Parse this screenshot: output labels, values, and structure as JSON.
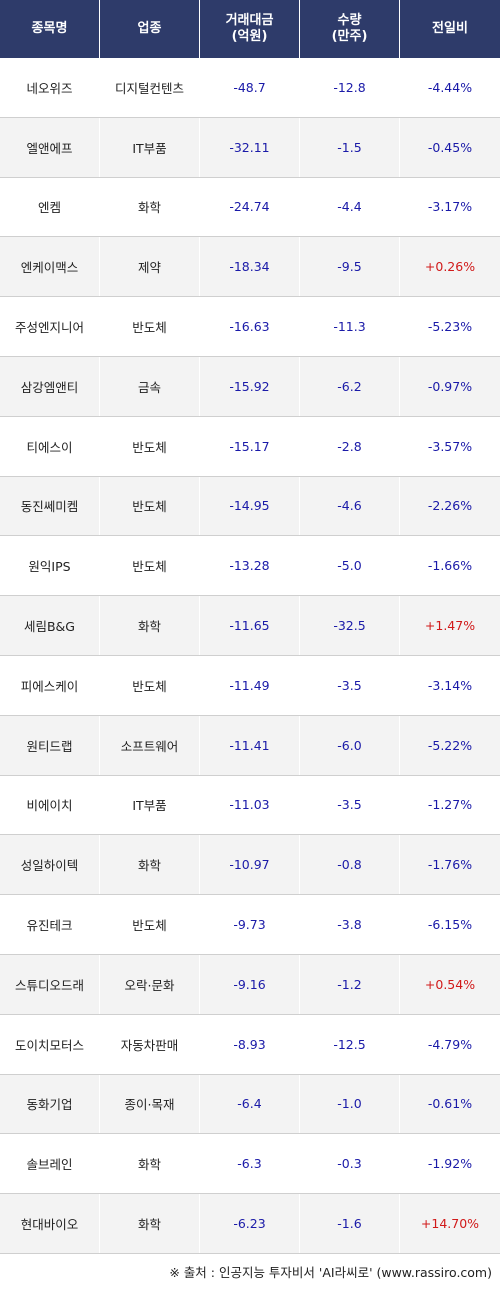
{
  "headers": [
    "종목명",
    "업종",
    "거래대금\n(억원)",
    "수량\n(만주)",
    "전일비"
  ],
  "rows": [
    {
      "name": "네오위즈",
      "sector": "디지털컨텐츠",
      "amount": "-48.7",
      "volume": "-12.8",
      "change": "-4.44%"
    },
    {
      "name": "엘앤에프",
      "sector": "IT부품",
      "amount": "-32.11",
      "volume": "-1.5",
      "change": "-0.45%"
    },
    {
      "name": "엔켐",
      "sector": "화학",
      "amount": "-24.74",
      "volume": "-4.4",
      "change": "-3.17%"
    },
    {
      "name": "엔케이맥스",
      "sector": "제약",
      "amount": "-18.34",
      "volume": "-9.5",
      "change": "+0.26%"
    },
    {
      "name": "주성엔지니어",
      "sector": "반도체",
      "amount": "-16.63",
      "volume": "-11.3",
      "change": "-5.23%"
    },
    {
      "name": "삼강엠앤티",
      "sector": "금속",
      "amount": "-15.92",
      "volume": "-6.2",
      "change": "-0.97%"
    },
    {
      "name": "티에스이",
      "sector": "반도체",
      "amount": "-15.17",
      "volume": "-2.8",
      "change": "-3.57%"
    },
    {
      "name": "동진쎄미켐",
      "sector": "반도체",
      "amount": "-14.95",
      "volume": "-4.6",
      "change": "-2.26%"
    },
    {
      "name": "원익IPS",
      "sector": "반도체",
      "amount": "-13.28",
      "volume": "-5.0",
      "change": "-1.66%"
    },
    {
      "name": "세림B&G",
      "sector": "화학",
      "amount": "-11.65",
      "volume": "-32.5",
      "change": "+1.47%"
    },
    {
      "name": "피에스케이",
      "sector": "반도체",
      "amount": "-11.49",
      "volume": "-3.5",
      "change": "-3.14%"
    },
    {
      "name": "원티드랩",
      "sector": "소프트웨어",
      "amount": "-11.41",
      "volume": "-6.0",
      "change": "-5.22%"
    },
    {
      "name": "비에이치",
      "sector": "IT부품",
      "amount": "-11.03",
      "volume": "-3.5",
      "change": "-1.27%"
    },
    {
      "name": "성일하이텍",
      "sector": "화학",
      "amount": "-10.97",
      "volume": "-0.8",
      "change": "-1.76%"
    },
    {
      "name": "유진테크",
      "sector": "반도체",
      "amount": "-9.73",
      "volume": "-3.8",
      "change": "-6.15%"
    },
    {
      "name": "스튜디오드래",
      "sector": "오락·문화",
      "amount": "-9.16",
      "volume": "-1.2",
      "change": "+0.54%"
    },
    {
      "name": "도이치모터스",
      "sector": "자동차판매",
      "amount": "-8.93",
      "volume": "-12.5",
      "change": "-4.79%"
    },
    {
      "name": "동화기업",
      "sector": "종이·목재",
      "amount": "-6.4",
      "volume": "-1.0",
      "change": "-0.61%"
    },
    {
      "name": "솔브레인",
      "sector": "화학",
      "amount": "-6.3",
      "volume": "-0.3",
      "change": "-1.92%"
    },
    {
      "name": "현대바이오",
      "sector": "화학",
      "amount": "-6.23",
      "volume": "-1.6",
      "change": "+14.70%"
    }
  ],
  "source": "※ 출처 : 인공지능 투자비서 'AI라씨로' (www.rassiro.com)",
  "colors": {
    "header_bg": "#2e3b6a",
    "negative": "#1a1aa8",
    "positive": "#d11a1a"
  }
}
